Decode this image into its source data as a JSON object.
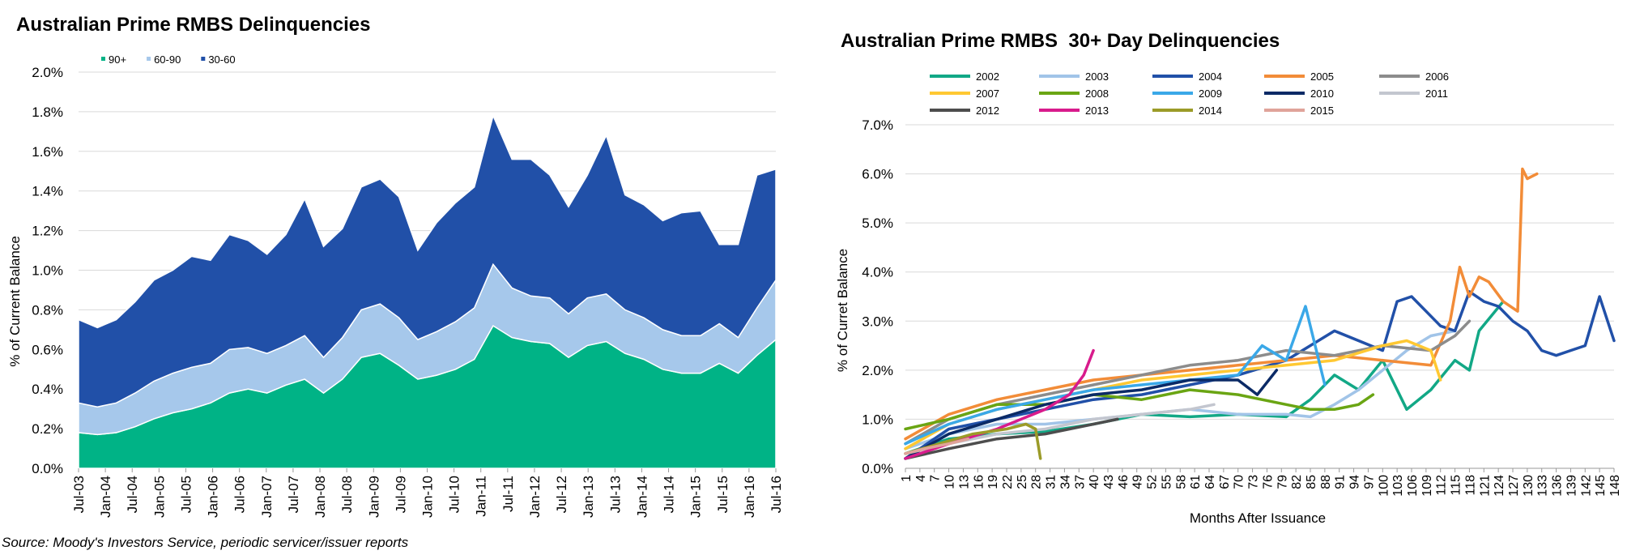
{
  "source_note": "Source: Moody's Investors Service, periodic servicer/issuer reports",
  "chart_data": [
    {
      "type": "area",
      "stacked": true,
      "title": "Australian Prime RMBS Delinquencies",
      "xlabel": "",
      "ylabel": "% of Current Balance",
      "ylim": [
        0,
        2.0
      ],
      "y_ticks": [
        "0.0%",
        "0.2%",
        "0.4%",
        "0.6%",
        "0.8%",
        "1.0%",
        "1.2%",
        "1.4%",
        "1.6%",
        "1.8%",
        "2.0%"
      ],
      "legend_position": "top-left",
      "grid": true,
      "x_ticks": [
        "Jul-03",
        "Jan-04",
        "Jul-04",
        "Jan-05",
        "Jul-05",
        "Jan-06",
        "Jul-06",
        "Jan-07",
        "Jul-07",
        "Jan-08",
        "Jul-08",
        "Jan-09",
        "Jul-09",
        "Jan-10",
        "Jul-10",
        "Jan-11",
        "Jul-11",
        "Jan-12",
        "Jul-12",
        "Jan-13",
        "Jul-13",
        "Jan-14",
        "Jul-14",
        "Jan-15",
        "Jul-15",
        "Jan-16",
        "Jul-16"
      ],
      "series": [
        {
          "name": "90+",
          "color": "#00b386",
          "values": [
            0.18,
            0.17,
            0.18,
            0.21,
            0.25,
            0.28,
            0.3,
            0.33,
            0.38,
            0.4,
            0.38,
            0.42,
            0.45,
            0.38,
            0.45,
            0.56,
            0.58,
            0.52,
            0.45,
            0.47,
            0.5,
            0.55,
            0.72,
            0.66,
            0.64,
            0.63,
            0.56,
            0.62,
            0.64,
            0.58,
            0.55,
            0.5,
            0.48,
            0.48,
            0.53,
            0.48,
            0.57,
            0.65
          ]
        },
        {
          "name": "60-90",
          "color": "#a6c8eb",
          "values": [
            0.15,
            0.14,
            0.15,
            0.17,
            0.19,
            0.2,
            0.21,
            0.2,
            0.22,
            0.21,
            0.2,
            0.2,
            0.22,
            0.18,
            0.21,
            0.24,
            0.25,
            0.24,
            0.2,
            0.22,
            0.24,
            0.26,
            0.31,
            0.25,
            0.23,
            0.23,
            0.22,
            0.24,
            0.24,
            0.22,
            0.21,
            0.2,
            0.19,
            0.19,
            0.2,
            0.18,
            0.24,
            0.3
          ]
        },
        {
          "name": "30-60",
          "color": "#2150a8",
          "values": [
            0.42,
            0.4,
            0.42,
            0.46,
            0.51,
            0.52,
            0.56,
            0.52,
            0.58,
            0.54,
            0.5,
            0.56,
            0.69,
            0.56,
            0.55,
            0.62,
            0.63,
            0.61,
            0.45,
            0.55,
            0.6,
            0.61,
            0.75,
            0.65,
            0.69,
            0.62,
            0.54,
            0.62,
            0.8,
            0.58,
            0.57,
            0.55,
            0.62,
            0.63,
            0.4,
            0.47,
            0.67,
            0.56
          ]
        }
      ]
    },
    {
      "type": "line",
      "title": "Australian Prime RMBS  30+ Day Delinquencies",
      "xlabel": "Months After Issuance",
      "ylabel": "% of Curret Balance",
      "ylim": [
        0,
        7.0
      ],
      "xlim": [
        1,
        148
      ],
      "y_ticks": [
        "0.0%",
        "1.0%",
        "2.0%",
        "3.0%",
        "4.0%",
        "5.0%",
        "6.0%",
        "7.0%"
      ],
      "x_ticks": [
        "1",
        "4",
        "7",
        "10",
        "13",
        "16",
        "19",
        "22",
        "25",
        "28",
        "31",
        "34",
        "37",
        "40",
        "43",
        "46",
        "49",
        "52",
        "55",
        "58",
        "61",
        "64",
        "67",
        "70",
        "73",
        "76",
        "79",
        "82",
        "85",
        "88",
        "91",
        "94",
        "97",
        "100",
        "103",
        "106",
        "109",
        "112",
        "115",
        "118",
        "121",
        "124",
        "127",
        "130",
        "133",
        "136",
        "139",
        "142",
        "145",
        "148"
      ],
      "legend_position": "top",
      "grid": true,
      "series": [
        {
          "name": "2002",
          "color": "#12a886",
          "x": [
            1,
            10,
            20,
            30,
            40,
            50,
            60,
            70,
            80,
            85,
            90,
            95,
            100,
            105,
            110,
            115,
            118,
            120,
            125
          ],
          "y": [
            0.3,
            0.6,
            0.7,
            0.75,
            0.9,
            1.1,
            1.05,
            1.1,
            1.05,
            1.4,
            1.9,
            1.6,
            2.2,
            1.2,
            1.6,
            2.2,
            2.0,
            2.8,
            3.4
          ]
        },
        {
          "name": "2003",
          "color": "#a1c4e8",
          "x": [
            1,
            10,
            20,
            30,
            40,
            50,
            60,
            70,
            80,
            85,
            90,
            95,
            100,
            105,
            110,
            115
          ],
          "y": [
            0.4,
            0.7,
            0.9,
            0.9,
            1.0,
            1.1,
            1.2,
            1.1,
            1.1,
            1.05,
            1.3,
            1.6,
            2.0,
            2.4,
            2.7,
            2.8
          ]
        },
        {
          "name": "2004",
          "color": "#2150a8",
          "x": [
            1,
            10,
            20,
            30,
            40,
            50,
            60,
            70,
            80,
            90,
            100,
            103,
            106,
            109,
            112,
            115,
            118,
            121,
            124,
            127,
            130,
            133,
            136,
            139,
            142,
            145,
            148
          ],
          "y": [
            0.2,
            0.8,
            1.0,
            1.2,
            1.4,
            1.5,
            1.7,
            1.9,
            2.2,
            2.8,
            2.4,
            3.4,
            3.5,
            3.2,
            2.9,
            2.8,
            3.6,
            3.4,
            3.3,
            3.0,
            2.8,
            2.4,
            2.3,
            2.4,
            2.5,
            3.5,
            2.6
          ]
        },
        {
          "name": "2005",
          "color": "#f28c38",
          "x": [
            1,
            10,
            20,
            30,
            40,
            50,
            60,
            70,
            80,
            90,
            100,
            110,
            114,
            116,
            118,
            120,
            122,
            125,
            128,
            129,
            130,
            132
          ],
          "y": [
            0.6,
            1.1,
            1.4,
            1.6,
            1.8,
            1.9,
            2.0,
            2.1,
            2.2,
            2.3,
            2.2,
            2.1,
            3.0,
            4.1,
            3.5,
            3.9,
            3.8,
            3.4,
            3.2,
            6.1,
            5.9,
            6.0
          ]
        },
        {
          "name": "2006",
          "color": "#8c8c8c",
          "x": [
            1,
            10,
            20,
            30,
            40,
            50,
            60,
            70,
            80,
            90,
            100,
            110,
            115,
            118
          ],
          "y": [
            0.5,
            1.0,
            1.3,
            1.5,
            1.7,
            1.9,
            2.1,
            2.2,
            2.4,
            2.3,
            2.5,
            2.4,
            2.7,
            3.0
          ]
        },
        {
          "name": "2007",
          "color": "#ffc832",
          "x": [
            1,
            10,
            20,
            30,
            40,
            50,
            60,
            70,
            80,
            90,
            100,
            105,
            110,
            112
          ],
          "y": [
            0.4,
            0.9,
            1.2,
            1.4,
            1.6,
            1.8,
            1.9,
            2.0,
            2.1,
            2.2,
            2.5,
            2.6,
            2.4,
            1.8
          ]
        },
        {
          "name": "2008",
          "color": "#6aa513",
          "x": [
            1,
            10,
            20,
            30,
            40,
            50,
            60,
            70,
            80,
            85,
            90,
            95,
            98
          ],
          "y": [
            0.8,
            1.0,
            1.3,
            1.3,
            1.5,
            1.4,
            1.6,
            1.5,
            1.3,
            1.2,
            1.2,
            1.3,
            1.5
          ]
        },
        {
          "name": "2009",
          "color": "#3aa8e8",
          "x": [
            1,
            10,
            20,
            30,
            40,
            50,
            60,
            70,
            75,
            80,
            84,
            88
          ],
          "y": [
            0.5,
            0.9,
            1.2,
            1.4,
            1.6,
            1.7,
            1.8,
            1.9,
            2.5,
            2.2,
            3.3,
            1.7
          ]
        },
        {
          "name": "2010",
          "color": "#0b2a66",
          "x": [
            1,
            10,
            20,
            30,
            40,
            50,
            60,
            70,
            74,
            78
          ],
          "y": [
            0.2,
            0.7,
            1.0,
            1.3,
            1.5,
            1.6,
            1.8,
            1.8,
            1.5,
            2.0
          ]
        },
        {
          "name": "2011",
          "color": "#c3c6cf",
          "x": [
            1,
            10,
            20,
            30,
            40,
            50,
            60,
            65
          ],
          "y": [
            0.3,
            0.5,
            0.7,
            0.8,
            1.0,
            1.1,
            1.2,
            1.3
          ]
        },
        {
          "name": "2012",
          "color": "#4d4d4d",
          "x": [
            1,
            10,
            20,
            30,
            40,
            45
          ],
          "y": [
            0.2,
            0.4,
            0.6,
            0.7,
            0.9,
            1.0
          ]
        },
        {
          "name": "2013",
          "color": "#d81b8c",
          "x": [
            1,
            10,
            20,
            30,
            35,
            38,
            40
          ],
          "y": [
            0.2,
            0.5,
            0.8,
            1.2,
            1.5,
            1.9,
            2.4
          ]
        },
        {
          "name": "2014",
          "color": "#9b9b28",
          "x": [
            1,
            8,
            15,
            22,
            26,
            28,
            29
          ],
          "y": [
            0.3,
            0.5,
            0.7,
            0.8,
            0.9,
            0.8,
            0.2
          ]
        },
        {
          "name": "2015",
          "color": "#e0a39a",
          "x": [
            1,
            5,
            10,
            14
          ],
          "y": [
            0.3,
            0.4,
            0.5,
            0.6
          ]
        }
      ]
    }
  ]
}
